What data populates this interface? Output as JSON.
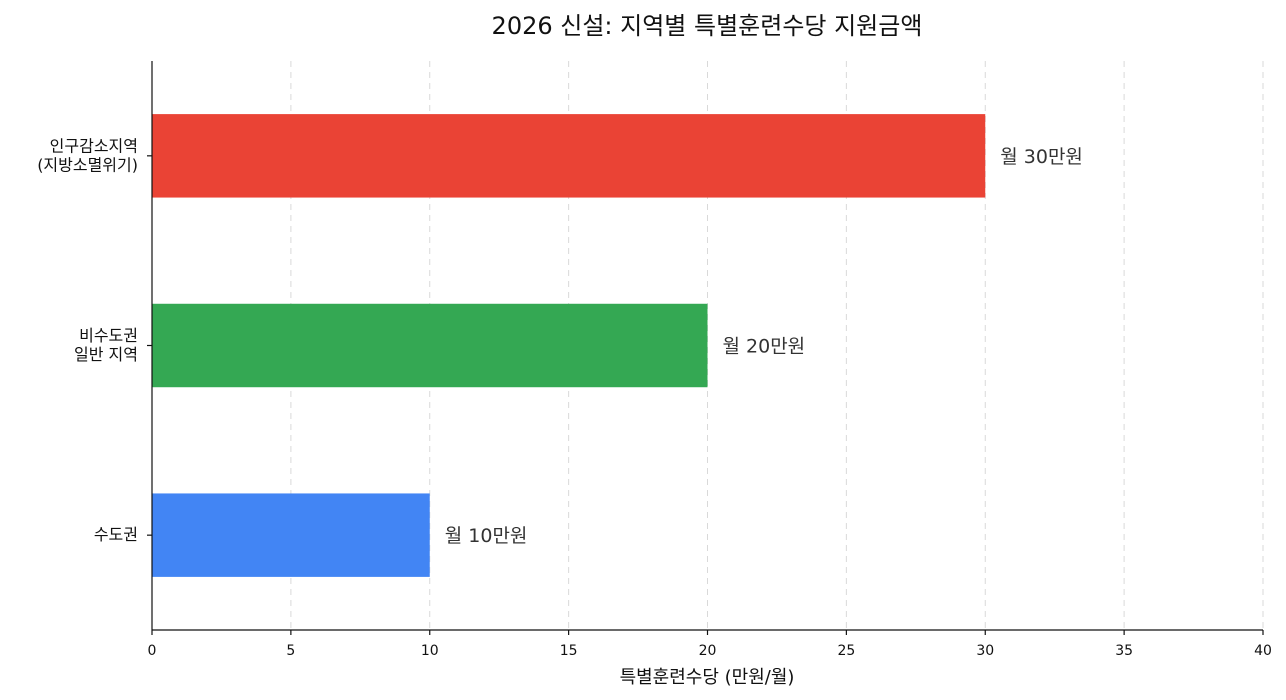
{
  "chart_data": {
    "type": "bar",
    "orientation": "horizontal",
    "title": "2026 신설: 지역별 특별훈련수당 지원금액",
    "xlabel": "특별훈련수당 (만원/월)",
    "ylabel": "",
    "xlim": [
      0,
      40
    ],
    "xticks": [
      0,
      5,
      10,
      15,
      20,
      25,
      30,
      35,
      40
    ],
    "grid": true,
    "categories": [
      {
        "lines": [
          "인구감소지역",
          "(지방소멸위기)"
        ]
      },
      {
        "lines": [
          "비수도권",
          "일반 지역"
        ]
      },
      {
        "lines": [
          "수도권"
        ]
      }
    ],
    "values": [
      30,
      20,
      10
    ],
    "data_labels": [
      "월 30만원",
      "월 20만원",
      "월 10만원"
    ],
    "colors": [
      "#EA4335",
      "#34A853",
      "#4285F4"
    ]
  }
}
